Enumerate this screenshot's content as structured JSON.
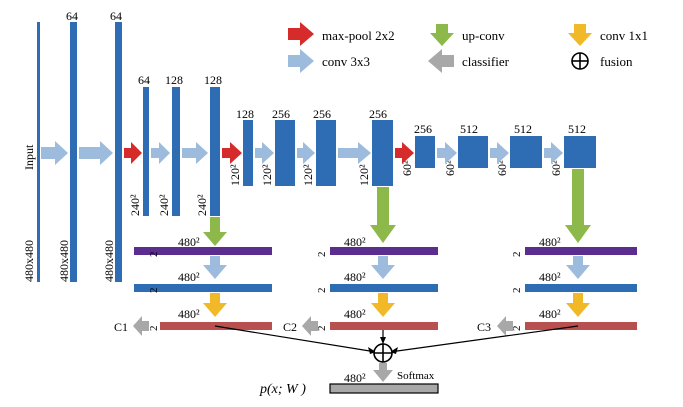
{
  "legend": {
    "max_pool": "max-pool 2x2",
    "conv3": "conv 3x3",
    "upconv": "up-conv",
    "classifier": "classifier",
    "conv1": "conv 1x1",
    "fusion": "fusion"
  },
  "input_label": "Input",
  "channels": {
    "c64a": "64",
    "c64b": "64",
    "c64c": "64",
    "c128a": "128",
    "c128b": "128",
    "c128c": "128",
    "c256a": "256",
    "c256b": "256",
    "c256c": "256",
    "c256d": "256",
    "c512a": "512",
    "c512b": "512",
    "c512c": "512"
  },
  "sizes": {
    "s480_1": "480x480",
    "s480_2": "480x480",
    "s480_3": "480x480",
    "s240_1": "240²",
    "s240_2": "240²",
    "s240_3": "240²",
    "s120_1": "120²",
    "s120_2": "120²",
    "s120_3": "120²",
    "s120_4": "120²",
    "s60_1": "60²",
    "s60_2": "60²",
    "s60_3": "60²",
    "s60_4": "60²"
  },
  "branches": {
    "res": "480²",
    "ch": "2",
    "c1": "C1",
    "c2": "C2",
    "c3": "C3"
  },
  "output": {
    "res": "480²",
    "softmax": "Softmax",
    "formula": "p(x; W )"
  },
  "colors": {
    "block": "#2e6db4",
    "maxpool": "#d62b2b",
    "conv3": "#9dbbdc",
    "upconv": "#8db84a",
    "conv1": "#f1b828",
    "classifier": "#a8a8a8",
    "purple": "#5b2d8e",
    "blue_bar": "#2e6db4",
    "red_bar": "#b85050",
    "out_bar": "#a8a8a8"
  }
}
